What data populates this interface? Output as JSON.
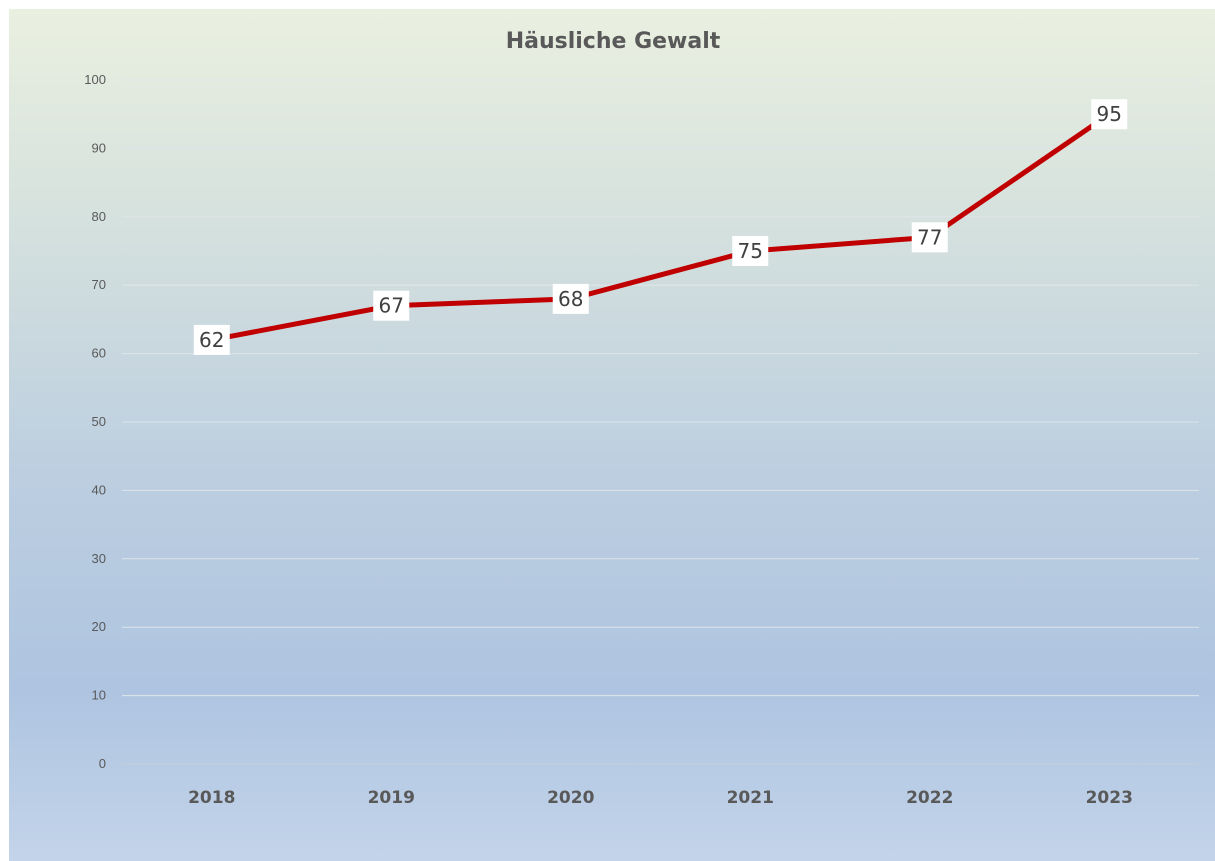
{
  "chart_data": {
    "type": "line",
    "title": "Häusliche Gewalt",
    "xlabel": "",
    "ylabel": "",
    "categories": [
      "2018",
      "2019",
      "2020",
      "2021",
      "2022",
      "2023"
    ],
    "series": [
      {
        "values": [
          62,
          67,
          68,
          75,
          77,
          95
        ],
        "color": "#c00000"
      }
    ],
    "ylim": [
      0,
      100
    ],
    "yticks": [
      0,
      10,
      20,
      30,
      40,
      50,
      60,
      70,
      80,
      90,
      100
    ],
    "grid": true,
    "legend": "none",
    "data_labels": true
  }
}
